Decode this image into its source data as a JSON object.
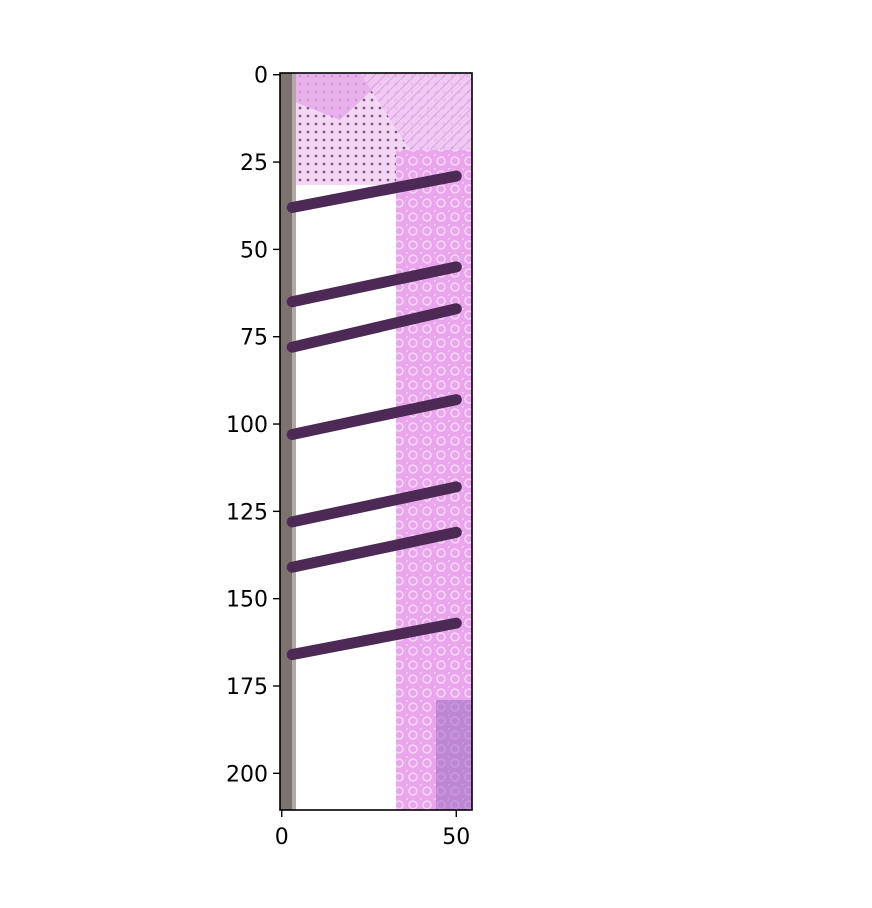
{
  "image_axes": {
    "x_ticks": [
      0,
      50
    ],
    "y_ticks": [
      0,
      25,
      50,
      75,
      100,
      125,
      150,
      175,
      200
    ],
    "x_range": [
      -0.5,
      54.5
    ],
    "y_range": [
      210.5,
      -0.5
    ]
  },
  "colors": {
    "background": "#ffffff",
    "axis": "#000000",
    "stripe_gray": "#7c7370",
    "pink_band": "#d88ae0",
    "pink_light": "#f2c4f3",
    "bar_dark": "#4d2a55",
    "white_area": "#ffffff"
  },
  "bars_y_left": [
    38,
    65,
    78,
    103,
    128,
    141,
    166
  ],
  "bars_y_right": [
    29,
    55,
    67,
    93,
    118,
    131,
    157
  ]
}
